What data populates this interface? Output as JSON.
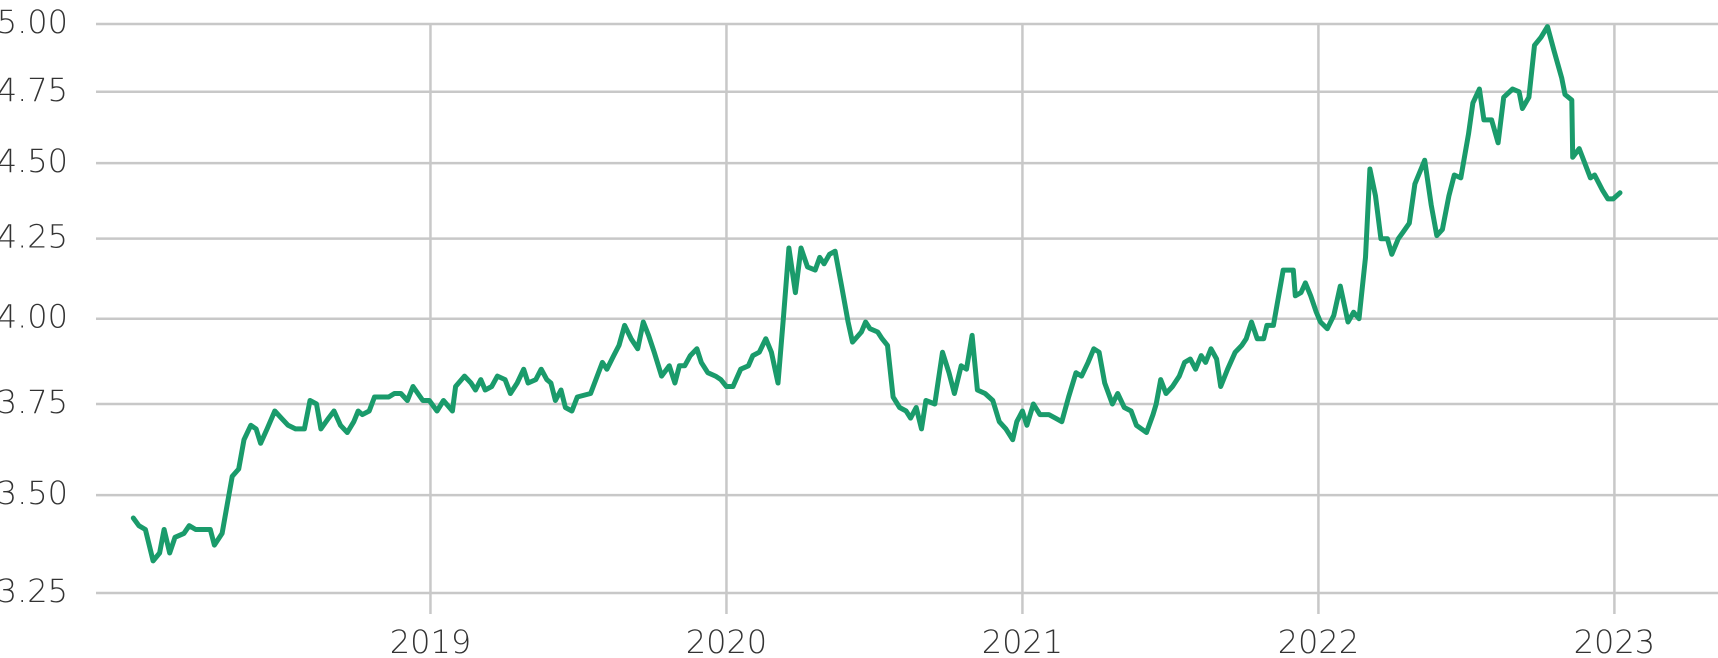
{
  "chart_data": {
    "type": "line",
    "color": "#1a9b6b",
    "grid": true,
    "ylog": true,
    "xlim": [
      2017.87,
      2023.35
    ],
    "xticks": [
      2019,
      2020,
      2021,
      2022,
      2023
    ],
    "ylim": [
      3.25,
      5.0
    ],
    "yticks": [
      {
        "value": 3.25,
        "label": "3.25"
      },
      {
        "value": 3.5,
        "label": "3.50"
      },
      {
        "value": 3.75,
        "label": "3.75"
      },
      {
        "value": 4.0,
        "label": "4.00"
      },
      {
        "value": 4.25,
        "label": "4.25"
      },
      {
        "value": 4.5,
        "label": "4.50"
      },
      {
        "value": 4.75,
        "label": "4.75"
      },
      {
        "value": 5.0,
        "label": "5.00"
      }
    ],
    "x": [
      2017.996,
      2018.015,
      2018.037,
      2018.063,
      2018.085,
      2018.1,
      2018.119,
      2018.137,
      2018.167,
      2018.185,
      2018.207,
      2018.237,
      2018.256,
      2018.27,
      2018.296,
      2018.33,
      2018.352,
      2018.37,
      2018.393,
      2018.411,
      2018.426,
      2018.448,
      2018.474,
      2018.496,
      2018.519,
      2018.544,
      2018.574,
      2018.593,
      2018.615,
      2018.63,
      2018.656,
      2018.674,
      2018.696,
      2018.719,
      2018.741,
      2018.756,
      2018.77,
      2018.793,
      2018.811,
      2018.837,
      2018.859,
      2018.878,
      2018.9,
      2018.922,
      2018.941,
      2018.974,
      2018.996,
      2019.022,
      2019.044,
      2019.074,
      2019.085,
      2019.115,
      2019.137,
      2019.152,
      2019.17,
      2019.185,
      2019.207,
      2019.226,
      2019.252,
      2019.27,
      2019.293,
      2019.315,
      2019.33,
      2019.356,
      2019.374,
      2019.393,
      2019.407,
      2019.422,
      2019.441,
      2019.456,
      2019.478,
      2019.496,
      2019.541,
      2019.581,
      2019.596,
      2019.619,
      2019.637,
      2019.656,
      2019.678,
      2019.7,
      2019.719,
      2019.737,
      2019.756,
      2019.781,
      2019.807,
      2019.826,
      2019.841,
      2019.859,
      2019.878,
      2019.9,
      2019.915,
      2019.937,
      2019.963,
      2019.981,
      2020.0,
      2020.022,
      2020.048,
      2020.074,
      2020.089,
      2020.111,
      2020.133,
      2020.152,
      2020.174,
      2020.193,
      2020.211,
      2020.233,
      2020.252,
      2020.274,
      2020.3,
      2020.315,
      2020.33,
      2020.348,
      2020.367,
      2020.389,
      2020.411,
      2020.426,
      2020.456,
      2020.47,
      2020.485,
      2020.511,
      2020.526,
      2020.544,
      2020.563,
      2020.585,
      2020.607,
      2020.622,
      2020.641,
      2020.659,
      2020.674,
      2020.704,
      2020.73,
      2020.752,
      2020.77,
      2020.793,
      2020.811,
      2020.83,
      2020.848,
      2020.874,
      2020.9,
      2020.922,
      2020.944,
      2020.967,
      2020.981,
      2021.0,
      2021.015,
      2021.037,
      2021.059,
      2021.089,
      2021.111,
      2021.133,
      2021.156,
      2021.181,
      2021.2,
      2021.222,
      2021.241,
      2021.259,
      2021.278,
      2021.304,
      2021.322,
      2021.344,
      2021.367,
      2021.385,
      2021.419,
      2021.441,
      2021.452,
      2021.467,
      2021.485,
      2021.507,
      2021.53,
      2021.548,
      2021.567,
      2021.585,
      2021.604,
      2021.619,
      2021.637,
      2021.656,
      2021.67,
      2021.693,
      2021.719,
      2021.741,
      2021.756,
      2021.774,
      2021.793,
      2021.815,
      2021.826,
      2021.848,
      2021.881,
      2021.915,
      2021.922,
      2021.941,
      2021.956,
      2021.974,
      2021.993,
      2022.007,
      2022.03,
      2022.052,
      2022.074,
      2022.1,
      2022.119,
      2022.137,
      2022.159,
      2022.174,
      2022.193,
      2022.211,
      2022.233,
      2022.248,
      2022.27,
      2022.285,
      2022.307,
      2022.326,
      2022.359,
      2022.381,
      2022.4,
      2022.419,
      2022.441,
      2022.459,
      2022.481,
      2022.507,
      2022.522,
      2022.544,
      2022.559,
      2022.585,
      2022.607,
      2022.626,
      2022.656,
      2022.678,
      2022.689,
      2022.711,
      2022.73,
      2022.752,
      2022.774,
      2022.796,
      2022.822,
      2022.833,
      2022.856,
      2022.859,
      2022.881,
      2022.9,
      2022.919,
      2022.933,
      2022.959,
      2022.978,
      2022.996,
      2023.019
    ],
    "values": [
      3.44,
      3.42,
      3.41,
      3.33,
      3.35,
      3.41,
      3.35,
      3.39,
      3.4,
      3.42,
      3.41,
      3.41,
      3.41,
      3.37,
      3.4,
      3.55,
      3.57,
      3.65,
      3.69,
      3.68,
      3.64,
      3.68,
      3.73,
      3.71,
      3.69,
      3.68,
      3.68,
      3.76,
      3.75,
      3.68,
      3.71,
      3.73,
      3.69,
      3.67,
      3.7,
      3.73,
      3.72,
      3.73,
      3.77,
      3.77,
      3.77,
      3.78,
      3.78,
      3.76,
      3.8,
      3.76,
      3.76,
      3.73,
      3.76,
      3.73,
      3.8,
      3.83,
      3.81,
      3.79,
      3.82,
      3.79,
      3.8,
      3.83,
      3.82,
      3.78,
      3.81,
      3.85,
      3.81,
      3.82,
      3.85,
      3.82,
      3.81,
      3.76,
      3.79,
      3.74,
      3.73,
      3.77,
      3.78,
      3.87,
      3.85,
      3.89,
      3.92,
      3.98,
      3.94,
      3.91,
      3.99,
      3.95,
      3.9,
      3.83,
      3.86,
      3.81,
      3.86,
      3.86,
      3.89,
      3.91,
      3.87,
      3.84,
      3.83,
      3.82,
      3.8,
      3.8,
      3.85,
      3.86,
      3.89,
      3.9,
      3.94,
      3.9,
      3.81,
      4.01,
      4.22,
      4.08,
      4.22,
      4.16,
      4.15,
      4.19,
      4.17,
      4.2,
      4.21,
      4.1,
      3.99,
      3.93,
      3.96,
      3.99,
      3.97,
      3.96,
      3.94,
      3.92,
      3.77,
      3.74,
      3.73,
      3.71,
      3.74,
      3.68,
      3.76,
      3.75,
      3.9,
      3.84,
      3.78,
      3.86,
      3.85,
      3.95,
      3.79,
      3.78,
      3.76,
      3.7,
      3.68,
      3.65,
      3.7,
      3.73,
      3.69,
      3.75,
      3.72,
      3.72,
      3.71,
      3.7,
      3.77,
      3.84,
      3.83,
      3.87,
      3.91,
      3.9,
      3.81,
      3.75,
      3.78,
      3.74,
      3.73,
      3.69,
      3.67,
      3.72,
      3.75,
      3.82,
      3.78,
      3.8,
      3.83,
      3.87,
      3.88,
      3.85,
      3.89,
      3.87,
      3.91,
      3.88,
      3.8,
      3.85,
      3.9,
      3.92,
      3.94,
      3.99,
      3.94,
      3.94,
      3.98,
      3.98,
      4.15,
      4.15,
      4.07,
      4.08,
      4.11,
      4.07,
      4.02,
      3.99,
      3.97,
      4.01,
      4.1,
      3.99,
      4.02,
      4.0,
      4.19,
      4.48,
      4.39,
      4.25,
      4.25,
      4.2,
      4.25,
      4.27,
      4.3,
      4.43,
      4.51,
      4.36,
      4.26,
      4.28,
      4.39,
      4.46,
      4.45,
      4.6,
      4.71,
      4.76,
      4.65,
      4.65,
      4.57,
      4.73,
      4.76,
      4.75,
      4.69,
      4.73,
      4.92,
      4.95,
      4.99,
      4.9,
      4.8,
      4.74,
      4.72,
      4.52,
      4.55,
      4.5,
      4.45,
      4.46,
      4.41,
      4.38,
      4.38,
      4.4
    ]
  }
}
